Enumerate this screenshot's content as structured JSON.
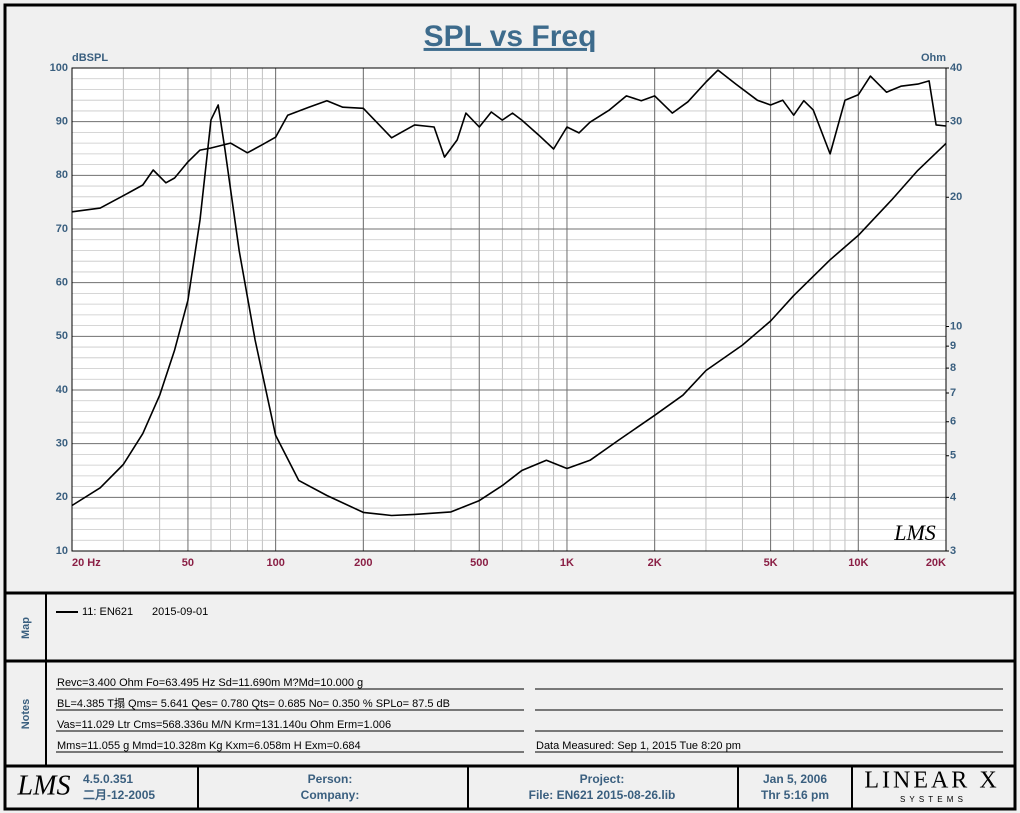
{
  "chart_data": {
    "type": "line",
    "title": "SPL vs Freq",
    "y_label": "dBSPL",
    "y2_label": "Ohm",
    "logo": "LMS",
    "xscale": "log",
    "y2scale": "log",
    "grid": true,
    "xlim": [
      20,
      20000
    ],
    "ylim": [
      10,
      100
    ],
    "y2lim": [
      3,
      40
    ],
    "xticks": [
      {
        "value": 20,
        "label": "20  Hz"
      },
      50,
      100,
      200,
      500,
      {
        "value": 1000,
        "label": "1K"
      },
      {
        "value": 2000,
        "label": "2K"
      },
      {
        "value": 5000,
        "label": "5K"
      },
      {
        "value": 10000,
        "label": "10K"
      },
      {
        "value": 20000,
        "label": "20K"
      }
    ],
    "yticks": [
      10,
      20,
      30,
      40,
      50,
      60,
      70,
      80,
      90,
      100
    ],
    "y2ticks": [
      3,
      4,
      5,
      6,
      7,
      8,
      9,
      10,
      20,
      30,
      40
    ],
    "series": [
      {
        "color": "#000000",
        "x": [
          20,
          25,
          30,
          35,
          38,
          42,
          45,
          50,
          55,
          60,
          70,
          80,
          90,
          100,
          110,
          130,
          150,
          170,
          200,
          250,
          300,
          350,
          380,
          420,
          450,
          500,
          550,
          600,
          650,
          700,
          800,
          900,
          1000,
          1100,
          1200,
          1400,
          1600,
          1800,
          2000,
          2300,
          2600,
          3000,
          3300,
          3800,
          4500,
          5000,
          5500,
          6000,
          6500,
          7000,
          8000,
          9000,
          10000,
          11000,
          12500,
          14000,
          16000,
          17500,
          18500,
          20000
        ],
        "values": [
          73.2,
          73.9,
          76.2,
          78.2,
          81,
          78.6,
          79.5,
          82.5,
          84.7,
          85.1,
          86.0,
          84.2,
          85.7,
          87.1,
          91.2,
          92.7,
          93.9,
          92.7,
          92.5,
          87,
          89.4,
          89,
          83.4,
          86.6,
          91.6,
          89,
          91.8,
          90.3,
          91.6,
          90.3,
          87.5,
          84.9,
          89,
          87.9,
          89.9,
          92.2,
          94.8,
          93.9,
          94.8,
          91.6,
          93.7,
          97.4,
          99.6,
          97,
          94,
          93.1,
          94,
          91.2,
          93.9,
          92.2,
          84,
          94,
          95,
          98.5,
          95.5,
          96.6,
          97,
          97.6,
          89.4,
          89.2
        ]
      },
      {
        "color": "#000000",
        "axis": "y2",
        "x": [
          20,
          25,
          30,
          35,
          40,
          45,
          50,
          55,
          60,
          63.5,
          67,
          75,
          85,
          100,
          120,
          150,
          200,
          250,
          300,
          400,
          500,
          600,
          700,
          850,
          1000,
          1200,
          1500,
          2000,
          2500,
          3000,
          4000,
          5000,
          6000,
          8000,
          10000,
          13000,
          16000,
          20000
        ],
        "values": [
          3.83,
          4.21,
          4.77,
          5.63,
          6.92,
          8.81,
          11.5,
          17.7,
          30.3,
          32.8,
          25.8,
          15.0,
          9.3,
          5.58,
          4.38,
          4.04,
          3.69,
          3.63,
          3.65,
          3.7,
          3.93,
          4.26,
          4.62,
          4.88,
          4.67,
          4.88,
          5.43,
          6.21,
          6.92,
          7.9,
          9.05,
          10.3,
          11.8,
          14.3,
          16.3,
          19.7,
          23.1,
          26.7
        ]
      }
    ]
  },
  "map": {
    "title": "Map",
    "entries": [
      {
        "label": "11: EN621",
        "date": "2015-09-01"
      }
    ]
  },
  "notes": {
    "title": "Notes",
    "lines": [
      "Revc=3.400 Ohm  Fo=63.495 Hz  Sd=11.690m M?Md=10.000 g",
      "BL=4.385 T搨  Qms= 5.641  Qes= 0.780  Qts= 0.685  No= 0.350 %  SPLo= 87.5 dB",
      "Vas=11.029 Ltr  Cms=568.336u M/N  Krm=131.140u Ohm  Erm=1.006",
      "Mms=11.055 g  Mmd=10.328m Kg  Kxm=6.058m H  Exm=0.684"
    ],
    "measured": "Data Measured: Sep  1, 2015  Tue  8:20 pm"
  },
  "footer": {
    "logo": "LMS",
    "version": "4.5.0.351",
    "build_date": "二月-12-2005",
    "person": "Person:",
    "company": "Company:",
    "project": "Project:",
    "file": "File: EN621  2015-08-26.lib",
    "date": "Jan  5, 2006",
    "time": "Thr  5:16 pm",
    "brand": "LINEAR X",
    "brand_sub": "S Y S T E M S"
  }
}
